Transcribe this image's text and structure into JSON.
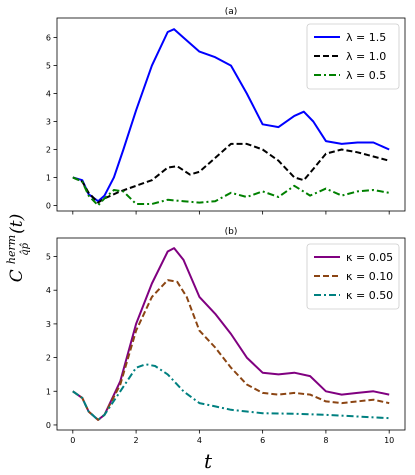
{
  "figure": {
    "xlabel": "t",
    "ylabel": {
      "base": "C",
      "sup": "herm",
      "sub": "q̂p̂",
      "arg": "(t)"
    }
  },
  "chart_data": [
    {
      "type": "line",
      "title": "(a)",
      "xlim": [
        -0.5,
        10.5
      ],
      "ylim": [
        -0.2,
        6.7
      ],
      "xticks": [
        0,
        2,
        4,
        6,
        8,
        10
      ],
      "yticks": [
        0,
        1,
        2,
        3,
        4,
        5,
        6
      ],
      "show_xtick_labels": false,
      "legend": "top-right",
      "grid": false,
      "series": [
        {
          "name": "λ = 1.5",
          "color": "#0000ff",
          "dash": "solid",
          "x": [
            0,
            0.3,
            0.5,
            0.8,
            1.0,
            1.3,
            1.6,
            2.0,
            2.5,
            3.0,
            3.2,
            3.5,
            4.0,
            4.5,
            5.0,
            5.5,
            6.0,
            6.5,
            7.0,
            7.3,
            7.6,
            8.0,
            8.5,
            9.0,
            9.5,
            10.0
          ],
          "y": [
            1.0,
            0.9,
            0.4,
            0.15,
            0.35,
            1.0,
            2.0,
            3.4,
            5.0,
            6.2,
            6.3,
            6.0,
            5.5,
            5.3,
            5.0,
            4.0,
            2.9,
            2.8,
            3.2,
            3.35,
            3.0,
            2.3,
            2.2,
            2.25,
            2.25,
            2.0
          ]
        },
        {
          "name": "λ = 1.0",
          "color": "#000000",
          "dash": "dashed",
          "x": [
            0,
            0.3,
            0.5,
            0.8,
            1.0,
            1.5,
            2.0,
            2.5,
            3.0,
            3.3,
            3.7,
            4.0,
            4.5,
            5.0,
            5.5,
            6.0,
            6.5,
            7.0,
            7.3,
            7.6,
            8.0,
            8.5,
            9.0,
            9.5,
            10.0
          ],
          "y": [
            1.0,
            0.85,
            0.45,
            0.1,
            0.25,
            0.5,
            0.7,
            0.9,
            1.35,
            1.4,
            1.1,
            1.2,
            1.7,
            2.2,
            2.2,
            2.0,
            1.6,
            1.0,
            0.9,
            1.3,
            1.85,
            2.0,
            1.9,
            1.75,
            1.6
          ]
        },
        {
          "name": "λ = 0.5",
          "color": "#008000",
          "dash": "dashdot",
          "x": [
            0,
            0.3,
            0.5,
            0.8,
            1.0,
            1.3,
            1.6,
            2.0,
            2.5,
            3.0,
            3.5,
            4.0,
            4.5,
            5.0,
            5.5,
            6.0,
            6.5,
            7.0,
            7.5,
            8.0,
            8.5,
            9.0,
            9.5,
            10.0
          ],
          "y": [
            1.0,
            0.85,
            0.35,
            0.0,
            0.25,
            0.55,
            0.5,
            0.05,
            0.05,
            0.2,
            0.15,
            0.1,
            0.15,
            0.45,
            0.3,
            0.5,
            0.3,
            0.7,
            0.35,
            0.6,
            0.35,
            0.5,
            0.55,
            0.45
          ]
        }
      ]
    },
    {
      "type": "line",
      "title": "(b)",
      "xlim": [
        -0.5,
        10.5
      ],
      "ylim": [
        -0.15,
        5.55
      ],
      "xticks": [
        0,
        2,
        4,
        6,
        8,
        10
      ],
      "yticks": [
        0,
        1,
        2,
        3,
        4,
        5
      ],
      "show_xtick_labels": true,
      "legend": "top-right",
      "grid": false,
      "series": [
        {
          "name": "κ = 0.05",
          "color": "#800080",
          "dash": "solid",
          "x": [
            0,
            0.3,
            0.5,
            0.8,
            1.0,
            1.5,
            2.0,
            2.5,
            3.0,
            3.2,
            3.5,
            4.0,
            4.5,
            5.0,
            5.5,
            6.0,
            6.5,
            7.0,
            7.5,
            8.0,
            8.5,
            9.0,
            9.5,
            10.0
          ],
          "y": [
            1.0,
            0.8,
            0.4,
            0.15,
            0.3,
            1.3,
            3.0,
            4.2,
            5.15,
            5.25,
            4.9,
            3.8,
            3.3,
            2.7,
            2.0,
            1.55,
            1.5,
            1.55,
            1.45,
            1.0,
            0.9,
            0.95,
            1.0,
            0.9
          ]
        },
        {
          "name": "κ = 0.10",
          "color": "#8b4513",
          "dash": "dashed",
          "x": [
            0,
            0.3,
            0.5,
            0.8,
            1.0,
            1.5,
            2.0,
            2.5,
            3.0,
            3.3,
            3.6,
            4.0,
            4.5,
            5.0,
            5.5,
            6.0,
            6.5,
            7.0,
            7.5,
            8.0,
            8.5,
            9.0,
            9.5,
            10.0
          ],
          "y": [
            1.0,
            0.8,
            0.4,
            0.15,
            0.3,
            1.2,
            2.8,
            3.8,
            4.3,
            4.25,
            3.8,
            2.8,
            2.3,
            1.7,
            1.2,
            0.95,
            0.9,
            0.95,
            0.9,
            0.7,
            0.65,
            0.7,
            0.75,
            0.65
          ]
        },
        {
          "name": "κ = 0.50",
          "color": "#008080",
          "dash": "dashdot",
          "x": [
            0,
            0.3,
            0.5,
            0.8,
            1.0,
            1.5,
            2.0,
            2.3,
            2.6,
            3.0,
            3.5,
            4.0,
            4.5,
            5.0,
            5.5,
            6.0,
            7.0,
            8.0,
            9.0,
            10.0
          ],
          "y": [
            1.0,
            0.8,
            0.4,
            0.15,
            0.3,
            1.0,
            1.7,
            1.8,
            1.75,
            1.5,
            1.0,
            0.65,
            0.55,
            0.45,
            0.4,
            0.35,
            0.33,
            0.3,
            0.25,
            0.2
          ]
        }
      ]
    }
  ]
}
